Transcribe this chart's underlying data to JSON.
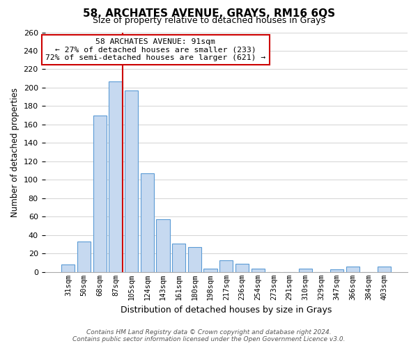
{
  "title": "58, ARCHATES AVENUE, GRAYS, RM16 6QS",
  "subtitle": "Size of property relative to detached houses in Grays",
  "xlabel": "Distribution of detached houses by size in Grays",
  "ylabel": "Number of detached properties",
  "bar_labels": [
    "31sqm",
    "50sqm",
    "68sqm",
    "87sqm",
    "105sqm",
    "124sqm",
    "143sqm",
    "161sqm",
    "180sqm",
    "198sqm",
    "217sqm",
    "236sqm",
    "254sqm",
    "273sqm",
    "291sqm",
    "310sqm",
    "329sqm",
    "347sqm",
    "366sqm",
    "384sqm",
    "403sqm"
  ],
  "bar_heights": [
    8,
    33,
    170,
    207,
    197,
    107,
    57,
    31,
    27,
    4,
    13,
    9,
    4,
    0,
    0,
    4,
    0,
    3,
    6,
    0,
    6
  ],
  "bar_color": "#c6d9f0",
  "bar_edge_color": "#5b9bd5",
  "vline_index": 3,
  "vline_color": "#cc0000",
  "annotation_title": "58 ARCHATES AVENUE: 91sqm",
  "annotation_line1": "← 27% of detached houses are smaller (233)",
  "annotation_line2": "72% of semi-detached houses are larger (621) →",
  "annotation_box_color": "#ffffff",
  "annotation_box_edge": "#cc0000",
  "ylim": [
    0,
    260
  ],
  "yticks": [
    0,
    20,
    40,
    60,
    80,
    100,
    120,
    140,
    160,
    180,
    200,
    220,
    240,
    260
  ],
  "footer_line1": "Contains HM Land Registry data © Crown copyright and database right 2024.",
  "footer_line2": "Contains public sector information licensed under the Open Government Licence v3.0.",
  "bg_color": "#ffffff",
  "grid_color": "#cccccc"
}
